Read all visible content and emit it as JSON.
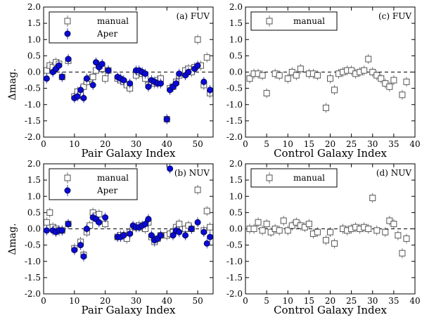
{
  "figure": {
    "ylabel": "Δmag.",
    "colors": {
      "aper": "#0a0ad6",
      "manual": "#555555",
      "frame": "#000000"
    }
  },
  "chart_data": [
    {
      "type": "scatter",
      "panel": "a",
      "title": "(a) FUV",
      "xlabel": "Pair Galaxy Index",
      "ylabel": "Δmag.",
      "xlim": [
        0,
        55
      ],
      "ylim": [
        -2.0,
        2.0
      ],
      "xticks": [
        0,
        10,
        20,
        30,
        40,
        50
      ],
      "yticks": [
        -2.0,
        -1.5,
        -1.0,
        -0.5,
        0.0,
        0.5,
        1.0,
        1.5,
        2.0
      ],
      "legend": [
        "manual",
        "Aper"
      ],
      "series": [
        {
          "name": "manual",
          "marker": "open-square",
          "x": [
            1,
            2,
            3,
            4,
            5,
            6,
            8,
            10,
            11,
            12,
            13,
            14,
            15,
            16,
            17,
            18,
            19,
            20,
            21,
            24,
            25,
            26,
            27,
            28,
            30,
            31,
            32,
            33,
            34,
            35,
            36,
            37,
            38,
            40,
            41,
            42,
            43,
            44,
            46,
            47,
            48,
            49,
            50,
            51,
            52,
            53,
            54
          ],
          "y": [
            0.05,
            0.2,
            0.15,
            0.3,
            0.25,
            -0.15,
            0.35,
            -0.75,
            -0.6,
            -0.7,
            -0.45,
            -0.3,
            -0.2,
            -0.15,
            0.05,
            0.2,
            0.1,
            -0.2,
            0.05,
            -0.2,
            -0.25,
            -0.3,
            -0.4,
            -0.5,
            -0.1,
            0.0,
            -0.05,
            -0.2,
            -0.4,
            -0.3,
            -0.35,
            -0.25,
            -0.2,
            -1.45,
            -0.5,
            -0.45,
            -0.3,
            -0.1,
            0.05,
            0.1,
            0.0,
            0.15,
            1.0,
            0.2,
            -0.4,
            0.45,
            -0.65
          ]
        },
        {
          "name": "Aper",
          "marker": "filled-circle",
          "x": [
            1,
            3,
            4,
            5,
            6,
            8,
            10,
            11,
            12,
            13,
            14,
            16,
            17,
            18,
            19,
            21,
            24,
            25,
            26,
            28,
            30,
            31,
            32,
            33,
            34,
            35,
            36,
            37,
            38,
            40,
            41,
            42,
            43,
            44,
            46,
            47,
            49,
            50,
            52,
            54
          ],
          "y": [
            -0.2,
            0.0,
            0.1,
            0.2,
            -0.15,
            0.4,
            -0.8,
            -0.75,
            -0.55,
            -0.8,
            -0.2,
            -0.4,
            0.3,
            0.15,
            0.25,
            0.05,
            -0.15,
            -0.2,
            -0.25,
            -0.35,
            0.05,
            0.05,
            0.0,
            -0.05,
            -0.45,
            -0.25,
            -0.3,
            -0.35,
            -0.35,
            -1.45,
            -0.55,
            -0.45,
            -0.35,
            -0.05,
            -0.1,
            0.0,
            0.1,
            0.2,
            -0.3,
            -0.55
          ]
        }
      ]
    },
    {
      "type": "scatter",
      "panel": "c",
      "title": "(c) FUV",
      "xlabel": "Control Galaxy Index",
      "ylabel": "",
      "xlim": [
        0,
        40
      ],
      "ylim": [
        -2.0,
        2.0
      ],
      "xticks": [
        0,
        5,
        10,
        15,
        20,
        25,
        30,
        35,
        40
      ],
      "yticks": [
        -2.0,
        -1.5,
        -1.0,
        -0.5,
        0.0,
        0.5,
        1.0,
        1.5,
        2.0
      ],
      "legend": [
        "manual"
      ],
      "series": [
        {
          "name": "manual",
          "marker": "open-square",
          "x": [
            1,
            2,
            3,
            4,
            5,
            7,
            8,
            10,
            11,
            12,
            13,
            15,
            16,
            17,
            19,
            20,
            21,
            22,
            23,
            24,
            25,
            26,
            27,
            28,
            29,
            30,
            31,
            32,
            33,
            34,
            35,
            37,
            38
          ],
          "y": [
            -0.2,
            -0.05,
            -0.05,
            -0.1,
            -0.65,
            -0.05,
            -0.1,
            -0.2,
            0.0,
            -0.1,
            0.1,
            -0.05,
            -0.05,
            -0.1,
            -1.1,
            -0.2,
            -0.55,
            -0.05,
            0.0,
            0.05,
            0.05,
            -0.05,
            0.0,
            0.05,
            0.4,
            0.0,
            -0.1,
            -0.2,
            -0.35,
            -0.45,
            -0.25,
            -0.7,
            -0.3
          ]
        }
      ]
    },
    {
      "type": "scatter",
      "panel": "b",
      "title": "(b) NUV",
      "xlabel": "Pair Galaxy Index",
      "ylabel": "Δmag.",
      "xlim": [
        0,
        55
      ],
      "ylim": [
        -2.0,
        2.0
      ],
      "xticks": [
        0,
        10,
        20,
        30,
        40,
        50
      ],
      "yticks": [
        -2.0,
        -1.5,
        -1.0,
        -0.5,
        0.0,
        0.5,
        1.0,
        1.5,
        2.0
      ],
      "legend": [
        "manual",
        "Aper"
      ],
      "series": [
        {
          "name": "manual",
          "marker": "open-square",
          "x": [
            1,
            2,
            3,
            4,
            5,
            6,
            8,
            10,
            12,
            13,
            14,
            15,
            16,
            17,
            18,
            20,
            24,
            25,
            26,
            27,
            28,
            30,
            31,
            32,
            33,
            34,
            35,
            36,
            37,
            38,
            40,
            41,
            42,
            43,
            44,
            46,
            47,
            48,
            50,
            52,
            53,
            54
          ],
          "y": [
            0.2,
            0.5,
            0.05,
            0.0,
            -0.05,
            -0.05,
            0.15,
            -0.6,
            -0.4,
            -0.8,
            -0.1,
            0.1,
            0.5,
            0.4,
            0.45,
            0.15,
            -0.25,
            -0.2,
            -0.2,
            -0.3,
            -0.1,
            0.05,
            0.1,
            0.05,
            0.0,
            0.2,
            -0.25,
            -0.4,
            -0.3,
            -0.2,
            -0.2,
            -0.15,
            -0.1,
            0.05,
            0.15,
            0.0,
            0.1,
            0.0,
            1.2,
            -0.05,
            0.55,
            0.05
          ]
        },
        {
          "name": "Aper",
          "marker": "filled-circle",
          "x": [
            1,
            3,
            4,
            5,
            6,
            8,
            10,
            12,
            13,
            14,
            16,
            17,
            18,
            20,
            24,
            25,
            26,
            28,
            29,
            30,
            31,
            32,
            33,
            34,
            35,
            36,
            37,
            38,
            41,
            42,
            43,
            44,
            46,
            48,
            50,
            52,
            53,
            54
          ],
          "y": [
            -0.05,
            -0.05,
            -0.1,
            -0.05,
            -0.05,
            0.15,
            -0.65,
            -0.5,
            -0.85,
            0.0,
            0.35,
            0.3,
            0.2,
            0.35,
            -0.25,
            -0.25,
            -0.2,
            -0.15,
            0.1,
            0.05,
            0.05,
            0.1,
            0.15,
            0.3,
            -0.2,
            -0.35,
            -0.3,
            -0.2,
            1.85,
            -0.2,
            -0.05,
            -0.1,
            -0.2,
            0.0,
            0.2,
            -0.1,
            -0.45,
            -0.25
          ]
        }
      ]
    },
    {
      "type": "scatter",
      "panel": "d",
      "title": "(d) NUV",
      "xlabel": "Control Galaxy Index",
      "ylabel": "",
      "xlim": [
        0,
        40
      ],
      "ylim": [
        -2.0,
        2.0
      ],
      "xticks": [
        0,
        5,
        10,
        15,
        20,
        25,
        30,
        35,
        40
      ],
      "yticks": [
        -2.0,
        -1.5,
        -1.0,
        -0.5,
        0.0,
        0.5,
        1.0,
        1.5,
        2.0
      ],
      "legend": [
        "manual"
      ],
      "series": [
        {
          "name": "manual",
          "marker": "open-square",
          "x": [
            1,
            2,
            3,
            4,
            5,
            6,
            7,
            8,
            9,
            10,
            11,
            12,
            13,
            14,
            15,
            16,
            17,
            19,
            20,
            21,
            23,
            24,
            25,
            26,
            27,
            28,
            29,
            30,
            31,
            33,
            34,
            35,
            36,
            37,
            38
          ],
          "y": [
            0.0,
            0.0,
            0.2,
            -0.05,
            0.15,
            -0.1,
            0.0,
            -0.05,
            0.25,
            -0.05,
            0.1,
            0.2,
            0.1,
            0.05,
            0.15,
            -0.15,
            -0.1,
            -0.35,
            -0.1,
            -0.45,
            0.0,
            -0.05,
            0.0,
            0.05,
            0.0,
            0.05,
            0.0,
            0.95,
            -0.05,
            -0.1,
            0.25,
            0.15,
            -0.2,
            -0.75,
            -0.3
          ]
        }
      ]
    }
  ]
}
